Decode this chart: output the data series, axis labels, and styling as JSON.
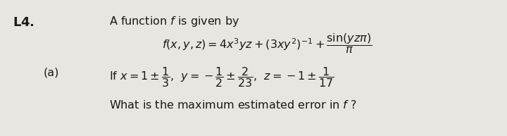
{
  "background_color": "#e9e5e0",
  "label_L4": "\\mathbf{L4.}",
  "label_a": "(a)",
  "line1": "A function $f$ is given by",
  "line2": "$f(x,y,z) = 4x^3yz + (3xy^2)^{-1} + \\dfrac{\\sin(yz\\pi)}{\\pi}$",
  "line3": "If $x = 1\\pm\\dfrac{1}{3}$,  $y = -\\dfrac{1}{2}\\pm\\dfrac{2}{23}$,  $z = -1\\pm\\dfrac{1}{17}$",
  "line4": "What is the maximum estimated error in $f$ ?",
  "font_size_main": 11.5,
  "font_size_label": 13.0,
  "text_color": "#1a1a1a"
}
